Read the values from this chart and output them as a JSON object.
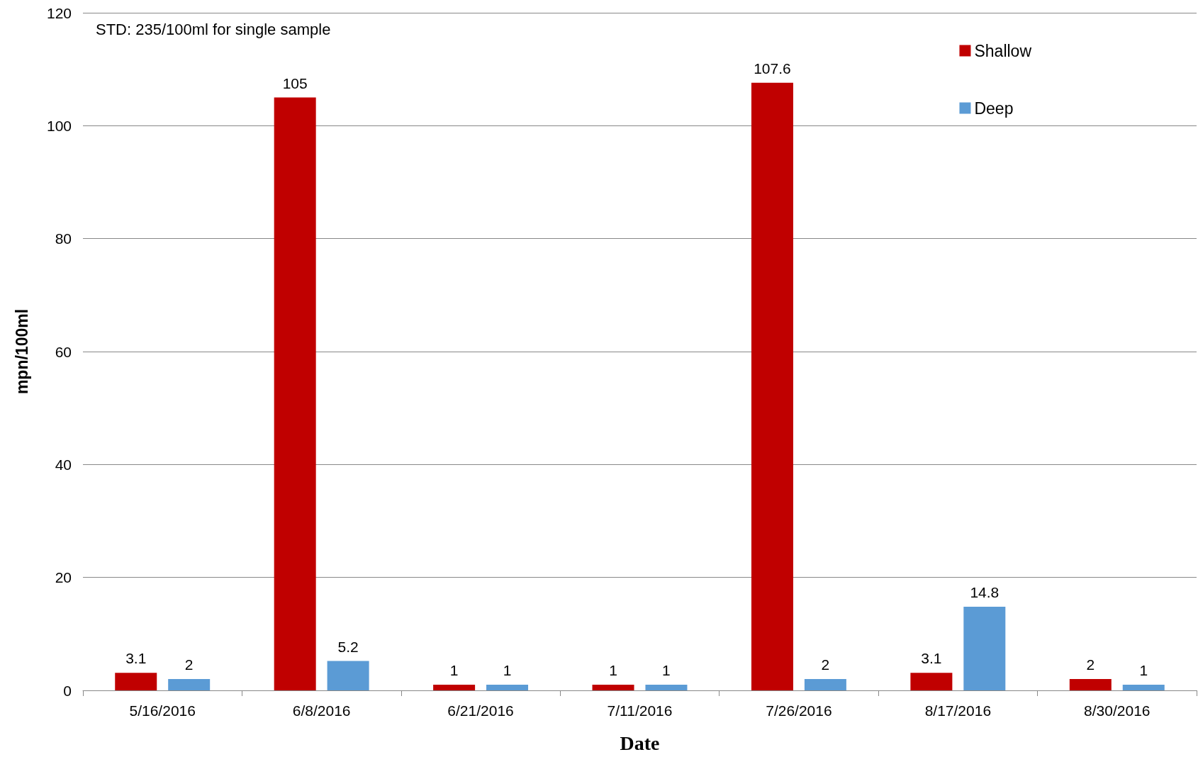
{
  "chart_data": {
    "type": "bar",
    "xlabel": "Date",
    "ylabel": "mpn/100ml",
    "annotations": [
      "STD: 235/100ml for single sample"
    ],
    "categories": [
      "5/16/2016",
      "6/8/2016",
      "6/21/2016",
      "7/11/2016",
      "7/26/2016",
      "8/17/2016",
      "8/30/2016"
    ],
    "series": [
      {
        "name": "Shallow",
        "color": "#c00000",
        "values": [
          3.1,
          105,
          1,
          1,
          107.6,
          3.1,
          2
        ]
      },
      {
        "name": "Deep",
        "color": "#5b9bd5",
        "values": [
          2,
          5.2,
          1,
          1,
          2,
          14.8,
          1
        ]
      }
    ],
    "ylim": [
      0,
      120
    ],
    "yticks": [
      0,
      20,
      40,
      60,
      80,
      100,
      120
    ],
    "grid": "y",
    "legend": "top right",
    "data_labels": true
  }
}
